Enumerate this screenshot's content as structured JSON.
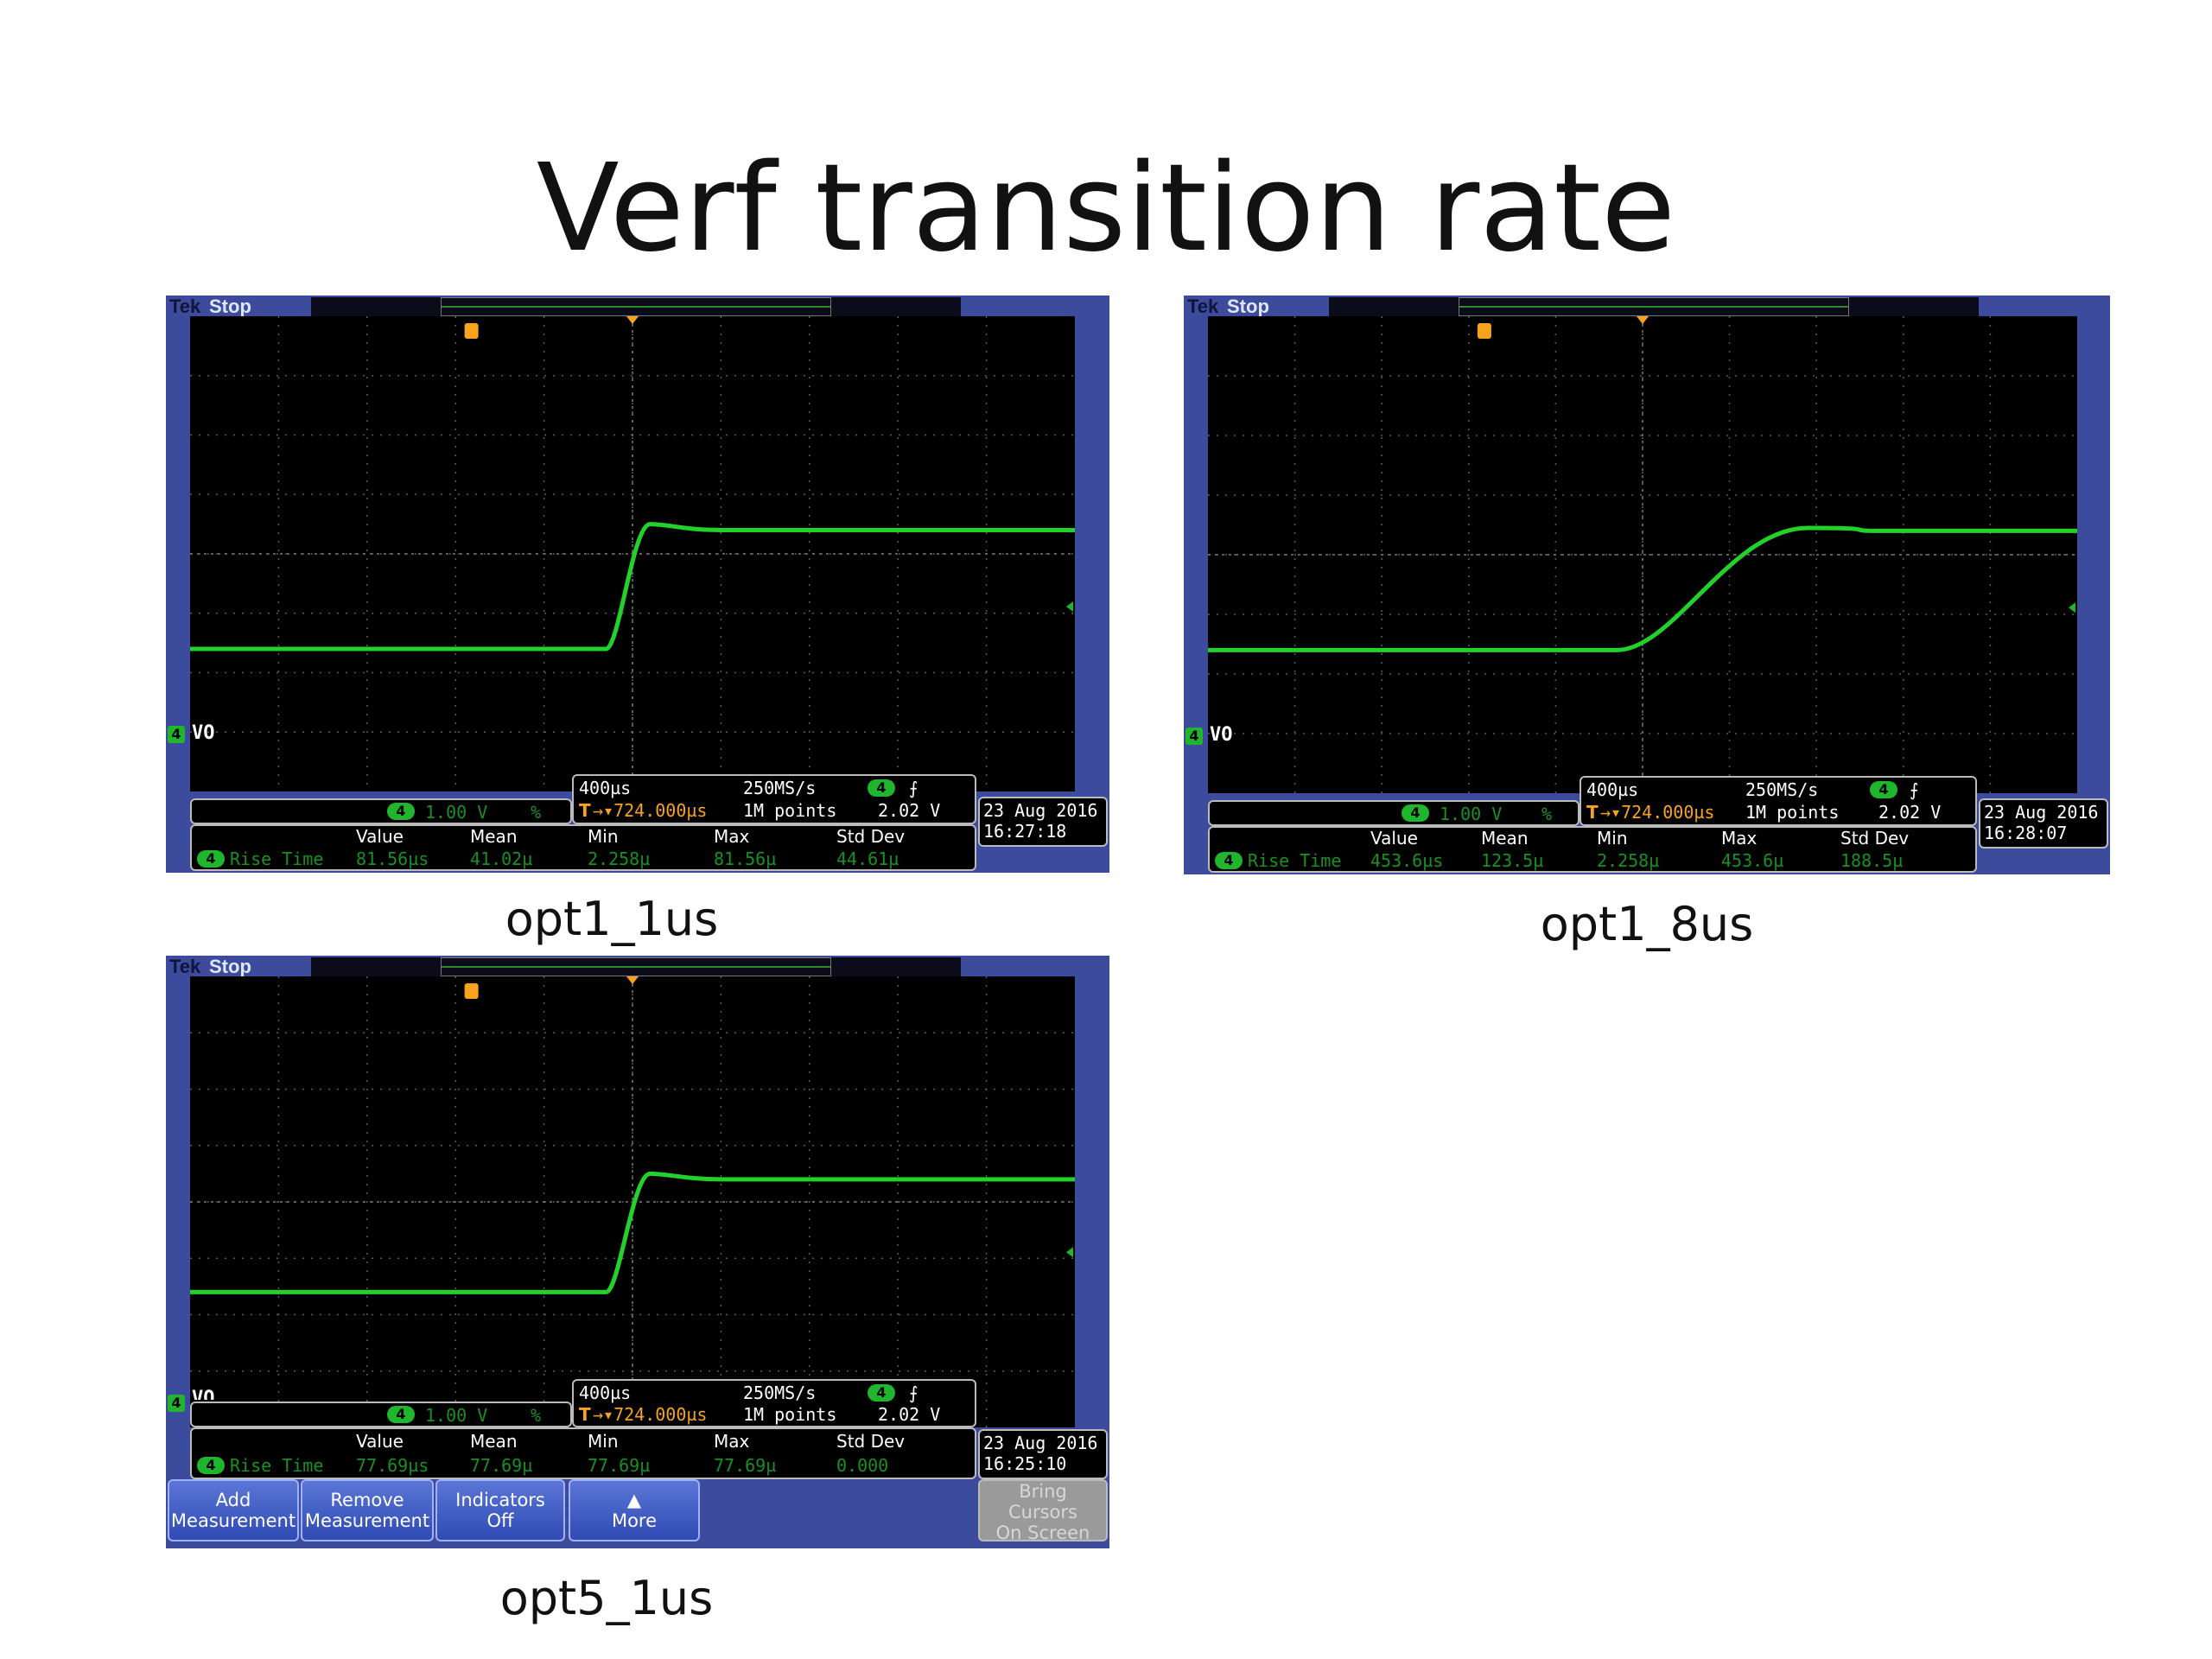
{
  "title": "Verf transition rate",
  "screens": [
    {
      "caption": "opt1_1us",
      "brand": "Tek",
      "state": "Stop",
      "channel_label": "VO",
      "channel_number": "4",
      "ch_scale": "1.00 V",
      "ch_bw": "%",
      "timebase": "400µs",
      "sample_rate": "250MS/s",
      "trig_pos": "→▾724.000µs",
      "record_length": "1M points",
      "trig_level": "2.02 V",
      "trig_slope": "⨍",
      "date": "23 Aug 2016",
      "time": "16:27:18",
      "meas_headers": [
        "Value",
        "Mean",
        "Min",
        "Max",
        "Std Dev"
      ],
      "meas_name": "Rise Time",
      "meas_values": [
        "81.56µs",
        "41.02µ",
        "2.258µ",
        "81.56µ",
        "44.61µ"
      ],
      "waveform": {
        "low_div": -1.6,
        "high_div": 0.4,
        "edge_start_div": 4.7,
        "edge_end_div": 5.2,
        "overshoot": 0.1
      }
    },
    {
      "caption": "opt1_8us",
      "brand": "Tek",
      "state": "Stop",
      "channel_label": "VO",
      "channel_number": "4",
      "ch_scale": "1.00 V",
      "ch_bw": "%",
      "timebase": "400µs",
      "sample_rate": "250MS/s",
      "trig_pos": "→▾724.000µs",
      "record_length": "1M points",
      "trig_level": "2.02 V",
      "trig_slope": "⨍",
      "date": "23 Aug 2016",
      "time": "16:28:07",
      "meas_headers": [
        "Value",
        "Mean",
        "Min",
        "Max",
        "Std Dev"
      ],
      "meas_name": "Rise Time",
      "meas_values": [
        "453.6µs",
        "123.5µ",
        "2.258µ",
        "453.6µ",
        "188.5µ"
      ],
      "waveform": {
        "low_div": -1.6,
        "high_div": 0.4,
        "edge_start_div": 4.7,
        "edge_end_div": 6.9,
        "overshoot": 0.05
      }
    },
    {
      "caption": "opt5_1us",
      "brand": "Tek",
      "state": "Stop",
      "channel_label": "VO",
      "channel_number": "4",
      "ch_scale": "1.00 V",
      "ch_bw": "%",
      "timebase": "400µs",
      "sample_rate": "250MS/s",
      "trig_pos": "→▾724.000µs",
      "record_length": "1M points",
      "trig_level": "2.02 V",
      "trig_slope": "⨍",
      "date": "23 Aug 2016",
      "time": "16:25:10",
      "meas_headers": [
        "Value",
        "Mean",
        "Min",
        "Max",
        "Std Dev"
      ],
      "meas_name": "Rise Time",
      "meas_values": [
        "77.69µs",
        "77.69µ",
        "77.69µ",
        "77.69µ",
        "0.000"
      ],
      "waveform": {
        "low_div": -1.6,
        "high_div": 0.4,
        "edge_start_div": 4.7,
        "edge_end_div": 5.2,
        "overshoot": 0.1
      },
      "softkeys": [
        {
          "line1": "Add",
          "line2": "Measurement"
        },
        {
          "line1": "Remove",
          "line2": "Measurement"
        },
        {
          "line1": "Indicators",
          "line2": "Off"
        },
        {
          "line1": "▲",
          "line2": "More"
        }
      ],
      "disabled_softkey": [
        "Bring",
        "Cursors",
        "On Screen"
      ]
    }
  ],
  "colors": {
    "trace": "#22d12a",
    "grid": "#5a5a5a",
    "trigger": "#f7a31d",
    "frame": "#3c4b9c"
  }
}
